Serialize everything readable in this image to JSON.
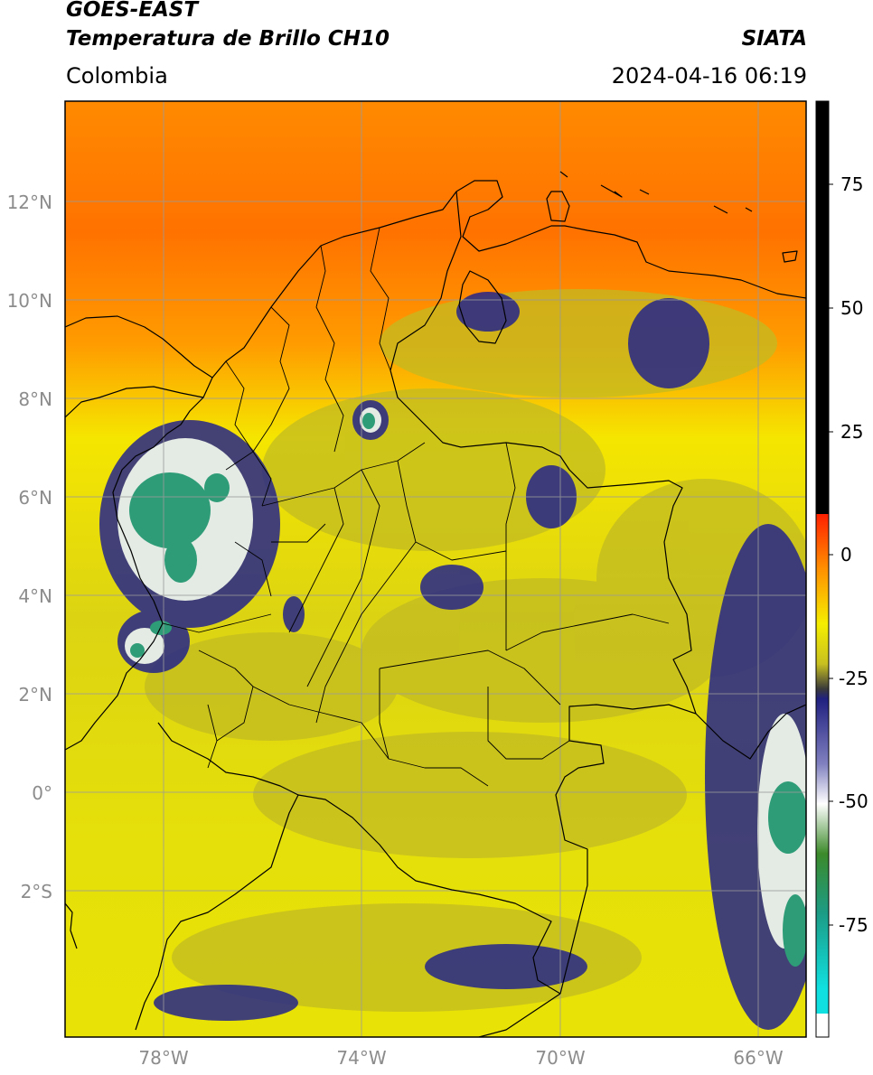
{
  "header": {
    "satellite": "GOES-EAST",
    "product": "Temperatura de Brillo CH10",
    "source": "SIATA",
    "region": "Colombia",
    "timestamp": "2024-04-16 06:19"
  },
  "map": {
    "lat_ticks": [
      "12°N",
      "10°N",
      "8°N",
      "6°N",
      "4°N",
      "2°N",
      "0°",
      "2°S"
    ],
    "lon_ticks": [
      "78°W",
      "74°W",
      "70°W",
      "66°W"
    ],
    "colors": {
      "warm": "#ff7a00",
      "mid": "#f2ee00",
      "olive": "#c9c21e",
      "cold_blue": "#1c1c80",
      "cloud_white": "#eef2ee",
      "coldest_teal": "#2aa07c",
      "border": "#000000",
      "grid": "#9a9a9a"
    }
  },
  "colorbar": {
    "ticks": [
      "75",
      "50",
      "25",
      "0",
      "-25",
      "-50",
      "-75"
    ]
  }
}
